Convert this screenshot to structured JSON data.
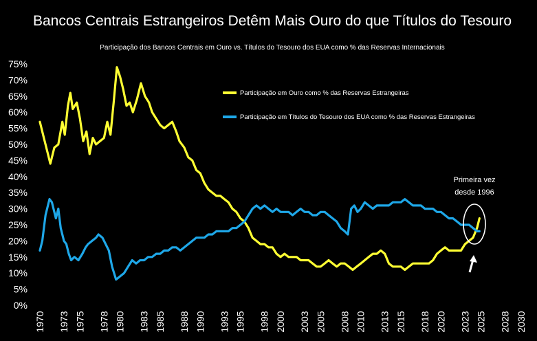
{
  "chart_data": {
    "type": "line",
    "title": "Bancos Centrais Estrangeiros Detêm Mais Ouro do que Títulos do Tesouro",
    "subtitle": "Participação dos Bancos Centrais em Ouro vs. Títulos do Tesouro dos EUA como % das Reservas Internacionais",
    "xlabel": "",
    "ylabel": "",
    "xlim": [
      1970,
      2030
    ],
    "ylim": [
      0,
      75
    ],
    "grid": false,
    "legend_position": "top-right",
    "x_ticks": [
      "1970",
      "1973",
      "1975",
      "1978",
      "1980",
      "1983",
      "1985",
      "1988",
      "1990",
      "1993",
      "1995",
      "1998",
      "2000",
      "2003",
      "2005",
      "2008",
      "2010",
      "2013",
      "2015",
      "2018",
      "2020",
      "2023",
      "2025",
      "2028",
      "2030"
    ],
    "y_ticks": [
      "0%",
      "5%",
      "10%",
      "15%",
      "20%",
      "25%",
      "30%",
      "35%",
      "40%",
      "45%",
      "50%",
      "55%",
      "60%",
      "65%",
      "70%",
      "75%"
    ],
    "colors": {
      "background": "#000000",
      "gold": "#ffff33",
      "treasury": "#1ea7e8",
      "text": "#ffffff"
    },
    "series": [
      {
        "name": "Participação em Ouro como % das Reservas Estrangeiras",
        "color": "#ffff33",
        "points": [
          [
            1970,
            57
          ],
          [
            1970.5,
            52
          ],
          [
            1971,
            47
          ],
          [
            1971.3,
            44
          ],
          [
            1971.8,
            49
          ],
          [
            1972.3,
            50
          ],
          [
            1972.8,
            57
          ],
          [
            1973.1,
            53
          ],
          [
            1973.5,
            62
          ],
          [
            1973.8,
            66
          ],
          [
            1974.1,
            61
          ],
          [
            1974.6,
            63
          ],
          [
            1975,
            58
          ],
          [
            1975.4,
            51
          ],
          [
            1975.8,
            54
          ],
          [
            1976.2,
            47
          ],
          [
            1976.6,
            52
          ],
          [
            1977,
            50
          ],
          [
            1977.5,
            51
          ],
          [
            1978,
            52
          ],
          [
            1978.4,
            57
          ],
          [
            1978.8,
            53
          ],
          [
            1979.2,
            63
          ],
          [
            1979.6,
            74
          ],
          [
            1980,
            71
          ],
          [
            1980.4,
            67
          ],
          [
            1980.8,
            62
          ],
          [
            1981.2,
            63
          ],
          [
            1981.6,
            60
          ],
          [
            1982.1,
            64
          ],
          [
            1982.6,
            69
          ],
          [
            1983.1,
            65
          ],
          [
            1983.6,
            63
          ],
          [
            1984,
            60
          ],
          [
            1984.5,
            58
          ],
          [
            1985,
            56
          ],
          [
            1985.5,
            55
          ],
          [
            1986,
            56
          ],
          [
            1986.5,
            57
          ],
          [
            1987,
            54
          ],
          [
            1987.4,
            51
          ],
          [
            1988,
            49
          ],
          [
            1988.5,
            46
          ],
          [
            1989,
            45
          ],
          [
            1989.5,
            42
          ],
          [
            1990,
            41
          ],
          [
            1990.5,
            38
          ],
          [
            1991,
            36
          ],
          [
            1991.5,
            35
          ],
          [
            1992,
            34
          ],
          [
            1992.5,
            34
          ],
          [
            1993,
            33
          ],
          [
            1993.5,
            32
          ],
          [
            1994,
            30
          ],
          [
            1994.5,
            29
          ],
          [
            1995,
            27
          ],
          [
            1995.5,
            26
          ],
          [
            1996,
            24
          ],
          [
            1996.5,
            21
          ],
          [
            1997,
            20
          ],
          [
            1997.5,
            19
          ],
          [
            1998,
            19
          ],
          [
            1998.5,
            18
          ],
          [
            1999,
            18
          ],
          [
            1999.5,
            16
          ],
          [
            2000,
            15
          ],
          [
            2000.5,
            16
          ],
          [
            2001,
            15
          ],
          [
            2001.5,
            15
          ],
          [
            2002,
            15
          ],
          [
            2002.5,
            14
          ],
          [
            2003,
            14
          ],
          [
            2003.5,
            14
          ],
          [
            2004,
            13
          ],
          [
            2004.5,
            12
          ],
          [
            2005,
            12
          ],
          [
            2005.5,
            13
          ],
          [
            2006,
            14
          ],
          [
            2006.5,
            13
          ],
          [
            2007,
            12
          ],
          [
            2007.5,
            13
          ],
          [
            2008,
            13
          ],
          [
            2008.5,
            12
          ],
          [
            2009,
            11
          ],
          [
            2009.5,
            12
          ],
          [
            2010,
            13
          ],
          [
            2010.5,
            14
          ],
          [
            2011,
            15
          ],
          [
            2011.5,
            16
          ],
          [
            2012,
            16
          ],
          [
            2012.5,
            17
          ],
          [
            2013,
            16
          ],
          [
            2013.5,
            13
          ],
          [
            2014,
            12
          ],
          [
            2014.5,
            12
          ],
          [
            2015,
            12
          ],
          [
            2015.5,
            11
          ],
          [
            2016,
            12
          ],
          [
            2016.5,
            13
          ],
          [
            2017,
            13
          ],
          [
            2017.5,
            13
          ],
          [
            2018,
            13
          ],
          [
            2018.5,
            13
          ],
          [
            2019,
            14
          ],
          [
            2019.5,
            16
          ],
          [
            2020,
            17
          ],
          [
            2020.5,
            18
          ],
          [
            2021,
            17
          ],
          [
            2021.5,
            17
          ],
          [
            2022,
            17
          ],
          [
            2022.5,
            17
          ],
          [
            2023,
            19
          ],
          [
            2023.5,
            20
          ],
          [
            2024,
            21
          ],
          [
            2024.5,
            24
          ],
          [
            2024.8,
            27
          ]
        ]
      },
      {
        "name": "Participação em Títulos do Tesouro dos EUA como % das Reservas Estrangeiras",
        "color": "#1ea7e8",
        "points": [
          [
            1970,
            17
          ],
          [
            1970.3,
            20
          ],
          [
            1970.7,
            28
          ],
          [
            1971,
            31
          ],
          [
            1971.2,
            33
          ],
          [
            1971.5,
            32
          ],
          [
            1972,
            27
          ],
          [
            1972.3,
            30
          ],
          [
            1972.6,
            24
          ],
          [
            1973,
            20
          ],
          [
            1973.3,
            19
          ],
          [
            1973.6,
            16
          ],
          [
            1973.9,
            14
          ],
          [
            1974.3,
            15
          ],
          [
            1974.8,
            14
          ],
          [
            1975.3,
            16
          ],
          [
            1975.7,
            18
          ],
          [
            1976,
            19
          ],
          [
            1976.5,
            20
          ],
          [
            1977,
            21
          ],
          [
            1977.3,
            22
          ],
          [
            1977.8,
            21
          ],
          [
            1978.2,
            19
          ],
          [
            1978.6,
            17
          ],
          [
            1979,
            12
          ],
          [
            1979.5,
            8
          ],
          [
            1980,
            9
          ],
          [
            1980.5,
            10
          ],
          [
            1981,
            12
          ],
          [
            1981.5,
            14
          ],
          [
            1982,
            13
          ],
          [
            1982.5,
            14
          ],
          [
            1983,
            14
          ],
          [
            1983.5,
            15
          ],
          [
            1984,
            15
          ],
          [
            1984.5,
            16
          ],
          [
            1985,
            16
          ],
          [
            1985.5,
            17
          ],
          [
            1986,
            17
          ],
          [
            1986.5,
            18
          ],
          [
            1987,
            18
          ],
          [
            1987.5,
            17
          ],
          [
            1988,
            18
          ],
          [
            1988.5,
            19
          ],
          [
            1989,
            20
          ],
          [
            1989.5,
            21
          ],
          [
            1990,
            21
          ],
          [
            1990.5,
            21
          ],
          [
            1991,
            22
          ],
          [
            1991.5,
            22
          ],
          [
            1992,
            23
          ],
          [
            1992.5,
            23
          ],
          [
            1993,
            23
          ],
          [
            1993.5,
            23
          ],
          [
            1994,
            24
          ],
          [
            1994.5,
            24
          ],
          [
            1995,
            25
          ],
          [
            1995.5,
            26
          ],
          [
            1996,
            28
          ],
          [
            1996.5,
            30
          ],
          [
            1997,
            31
          ],
          [
            1997.5,
            30
          ],
          [
            1998,
            31
          ],
          [
            1998.5,
            30
          ],
          [
            1999,
            29
          ],
          [
            1999.5,
            30
          ],
          [
            2000,
            29
          ],
          [
            2000.5,
            29
          ],
          [
            2001,
            29
          ],
          [
            2001.5,
            28
          ],
          [
            2002,
            29
          ],
          [
            2002.5,
            30
          ],
          [
            2003,
            29
          ],
          [
            2003.5,
            29
          ],
          [
            2004,
            28
          ],
          [
            2004.5,
            28
          ],
          [
            2005,
            29
          ],
          [
            2005.5,
            29
          ],
          [
            2006,
            28
          ],
          [
            2006.5,
            27
          ],
          [
            2007,
            26
          ],
          [
            2007.5,
            24
          ],
          [
            2008,
            23
          ],
          [
            2008.4,
            22
          ],
          [
            2008.8,
            30
          ],
          [
            2009.2,
            31
          ],
          [
            2009.6,
            29
          ],
          [
            2010,
            30
          ],
          [
            2010.5,
            32
          ],
          [
            2011,
            31
          ],
          [
            2011.5,
            30
          ],
          [
            2012,
            31
          ],
          [
            2012.5,
            31
          ],
          [
            2013,
            31
          ],
          [
            2013.5,
            31
          ],
          [
            2014,
            32
          ],
          [
            2014.5,
            32
          ],
          [
            2015,
            32
          ],
          [
            2015.5,
            33
          ],
          [
            2016,
            32
          ],
          [
            2016.5,
            31
          ],
          [
            2017,
            31
          ],
          [
            2017.5,
            31
          ],
          [
            2018,
            30
          ],
          [
            2018.5,
            30
          ],
          [
            2019,
            30
          ],
          [
            2019.5,
            29
          ],
          [
            2020,
            29
          ],
          [
            2020.5,
            28
          ],
          [
            2021,
            27
          ],
          [
            2021.5,
            27
          ],
          [
            2022,
            26
          ],
          [
            2022.5,
            25
          ],
          [
            2023,
            25
          ],
          [
            2023.5,
            25
          ],
          [
            2024,
            24
          ],
          [
            2024.5,
            23
          ],
          [
            2024.8,
            23
          ]
        ]
      }
    ],
    "annotations": [
      "Primeira vez",
      "desde 1996"
    ]
  }
}
